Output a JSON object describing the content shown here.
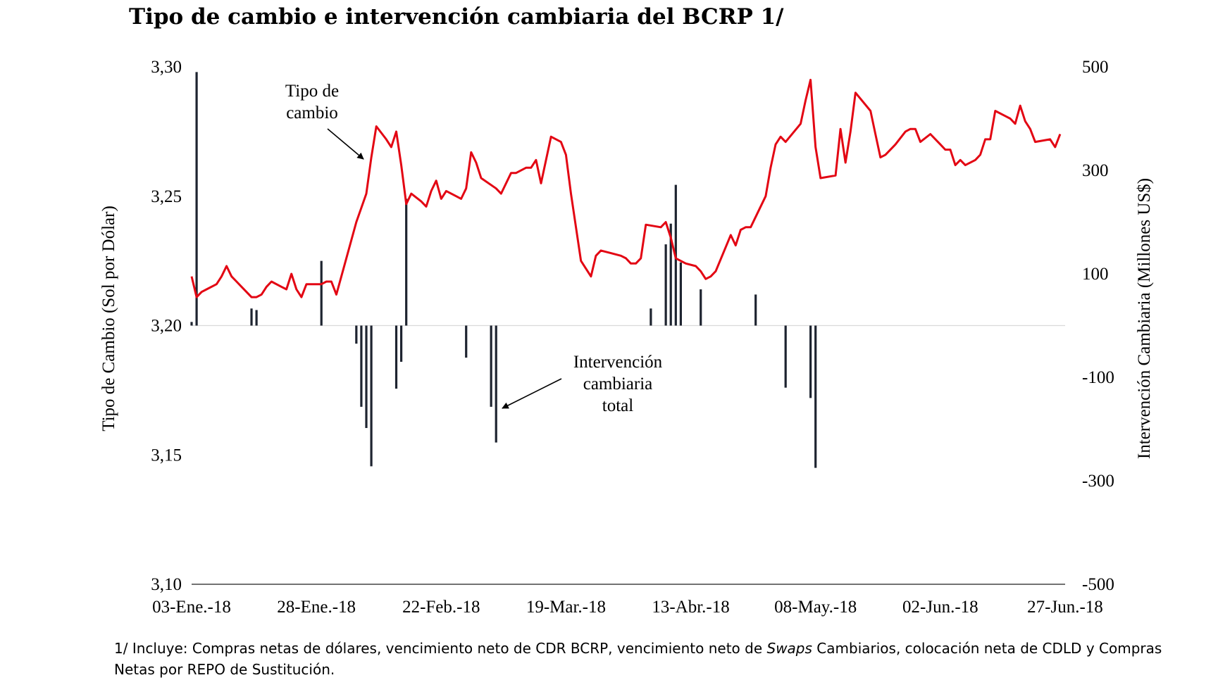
{
  "title": "Tipo de cambio e intervención cambiaria del BCRP 1/",
  "footnote": {
    "part1": "1/ Incluye: Compras netas de dólares, vencimiento neto de CDR BCRP, vencimiento neto de ",
    "italic": "Swaps",
    "part2": " Cambiarios, colocación neta de CDLD y Compras Netas por REPO de Sustitución."
  },
  "chart_data": {
    "type": "line+bar",
    "ylabel_left": "Tipo de Cambio (Sol por Dólar)",
    "ylabel_right": "Intervención Cambiaria (Millones US$)",
    "ylim_left": [
      3.1,
      3.3
    ],
    "ylim_right": [
      -500,
      500
    ],
    "yticks_left": [
      "3,10",
      "3,15",
      "3,20",
      "3,25",
      "3,30"
    ],
    "yticks_right": [
      "-500",
      "-300",
      "-100",
      "100",
      "300",
      "500"
    ],
    "x_range_days": [
      0,
      175
    ],
    "xticks": [
      {
        "day": 0,
        "label": "03-Ene.-18"
      },
      {
        "day": 25,
        "label": "28-Ene.-18"
      },
      {
        "day": 50,
        "label": "22-Feb.-18"
      },
      {
        "day": 75,
        "label": "19-Mar.-18"
      },
      {
        "day": 100,
        "label": "13-Abr.-18"
      },
      {
        "day": 125,
        "label": "08-May.-18"
      },
      {
        "day": 150,
        "label": "02-Jun.-18"
      },
      {
        "day": 175,
        "label": "27-Jun.-18"
      }
    ],
    "exchange_rate": {
      "name": "Tipo de cambio",
      "color": "#e30613",
      "points": [
        [
          0,
          3.219
        ],
        [
          1,
          3.211
        ],
        [
          2,
          3.213
        ],
        [
          3,
          3.214
        ],
        [
          5,
          3.216
        ],
        [
          6,
          3.219
        ],
        [
          7,
          3.223
        ],
        [
          8,
          3.219
        ],
        [
          9,
          3.217
        ],
        [
          10,
          3.215
        ],
        [
          12,
          3.211
        ],
        [
          13,
          3.211
        ],
        [
          14,
          3.212
        ],
        [
          15,
          3.215
        ],
        [
          16,
          3.217
        ],
        [
          18,
          3.215
        ],
        [
          19,
          3.214
        ],
        [
          20,
          3.22
        ],
        [
          21,
          3.214
        ],
        [
          22,
          3.211
        ],
        [
          23,
          3.216
        ],
        [
          26,
          3.216
        ],
        [
          27,
          3.217
        ],
        [
          28,
          3.217
        ],
        [
          29,
          3.212
        ],
        [
          33,
          3.24
        ],
        [
          35,
          3.251
        ],
        [
          36,
          3.265
        ],
        [
          37,
          3.277
        ],
        [
          39,
          3.272
        ],
        [
          40,
          3.269
        ],
        [
          41,
          3.275
        ],
        [
          42,
          3.262
        ],
        [
          43,
          3.247
        ],
        [
          44,
          3.251
        ],
        [
          46,
          3.248
        ],
        [
          47,
          3.246
        ],
        [
          48,
          3.252
        ],
        [
          49,
          3.256
        ],
        [
          50,
          3.249
        ],
        [
          51,
          3.252
        ],
        [
          53,
          3.25
        ],
        [
          54,
          3.249
        ],
        [
          55,
          3.253
        ],
        [
          56,
          3.267
        ],
        [
          57,
          3.263
        ],
        [
          58,
          3.257
        ],
        [
          61,
          3.253
        ],
        [
          62,
          3.251
        ],
        [
          64,
          3.259
        ],
        [
          65,
          3.259
        ],
        [
          67,
          3.261
        ],
        [
          68,
          3.261
        ],
        [
          69,
          3.264
        ],
        [
          70,
          3.255
        ],
        [
          72,
          3.273
        ],
        [
          74,
          3.271
        ],
        [
          75,
          3.266
        ],
        [
          76,
          3.251
        ],
        [
          77,
          3.238
        ],
        [
          78,
          3.225
        ],
        [
          80,
          3.219
        ],
        [
          81,
          3.227
        ],
        [
          82,
          3.229
        ],
        [
          84,
          3.228
        ],
        [
          86,
          3.227
        ],
        [
          87,
          3.226
        ],
        [
          88,
          3.224
        ],
        [
          89,
          3.224
        ],
        [
          90,
          3.226
        ],
        [
          91,
          3.239
        ],
        [
          94,
          3.238
        ],
        [
          95,
          3.24
        ],
        [
          96,
          3.234
        ],
        [
          97,
          3.226
        ],
        [
          99,
          3.224
        ],
        [
          101,
          3.223
        ],
        [
          102,
          3.221
        ],
        [
          103,
          3.218
        ],
        [
          104,
          3.219
        ],
        [
          105,
          3.221
        ],
        [
          108,
          3.235
        ],
        [
          109,
          3.231
        ],
        [
          110,
          3.237
        ],
        [
          111,
          3.238
        ],
        [
          112,
          3.238
        ],
        [
          115,
          3.25
        ],
        [
          116,
          3.261
        ],
        [
          117,
          3.27
        ],
        [
          118,
          3.273
        ],
        [
          119,
          3.271
        ],
        [
          122,
          3.278
        ],
        [
          123,
          3.287
        ],
        [
          124,
          3.295
        ],
        [
          125,
          3.269
        ],
        [
          126,
          3.257
        ],
        [
          129,
          3.258
        ],
        [
          130,
          3.276
        ],
        [
          131,
          3.263
        ],
        [
          132,
          3.275
        ],
        [
          133,
          3.29
        ],
        [
          136,
          3.283
        ],
        [
          137,
          3.274
        ],
        [
          138,
          3.265
        ],
        [
          139,
          3.266
        ],
        [
          141,
          3.27
        ],
        [
          143,
          3.275
        ],
        [
          144,
          3.276
        ],
        [
          145,
          3.276
        ],
        [
          146,
          3.271
        ],
        [
          148,
          3.274
        ],
        [
          150,
          3.27
        ],
        [
          151,
          3.268
        ],
        [
          152,
          3.268
        ],
        [
          153,
          3.262
        ],
        [
          154,
          3.264
        ],
        [
          155,
          3.262
        ],
        [
          157,
          3.264
        ],
        [
          158,
          3.266
        ],
        [
          159,
          3.272
        ],
        [
          160,
          3.272
        ],
        [
          161,
          3.283
        ],
        [
          163,
          3.281
        ],
        [
          164,
          3.28
        ],
        [
          165,
          3.278
        ],
        [
          166,
          3.285
        ],
        [
          167,
          3.279
        ],
        [
          168,
          3.276
        ],
        [
          169,
          3.271
        ],
        [
          172,
          3.272
        ],
        [
          173,
          3.269
        ],
        [
          174,
          3.274
        ]
      ]
    },
    "intervention": {
      "name": "Intervención cambiaria total",
      "color": "#1e2430",
      "bars": [
        [
          0,
          7
        ],
        [
          1,
          490
        ],
        [
          12,
          33
        ],
        [
          13,
          30
        ],
        [
          26,
          125
        ],
        [
          33,
          -35
        ],
        [
          34,
          -157
        ],
        [
          35,
          -198
        ],
        [
          36,
          -272
        ],
        [
          41,
          -122
        ],
        [
          42,
          -70
        ],
        [
          43,
          245
        ],
        [
          55,
          -62
        ],
        [
          60,
          -157
        ],
        [
          61,
          -226
        ],
        [
          92,
          33
        ],
        [
          95,
          157
        ],
        [
          96,
          197
        ],
        [
          97,
          272
        ],
        [
          98,
          122
        ],
        [
          102,
          70
        ],
        [
          113,
          60
        ],
        [
          119,
          -120
        ],
        [
          124,
          -140
        ],
        [
          125,
          -275
        ]
      ]
    },
    "annotations": [
      {
        "text_lines": [
          "Tipo de",
          "cambio"
        ]
      },
      {
        "text_lines": [
          "Intervención",
          "cambiaria",
          "total"
        ]
      }
    ],
    "grid": false,
    "legend": "none"
  }
}
